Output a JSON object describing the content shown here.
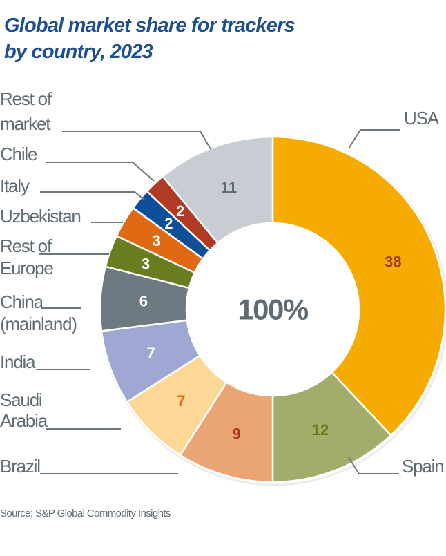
{
  "chart_data": {
    "type": "pie",
    "variant": "donut",
    "title": [
      "Global market share for trackers",
      "by country, 2023"
    ],
    "center_label": "100%",
    "unit": "%",
    "start": "12 o'clock, clockwise",
    "slices": [
      {
        "name": "USA",
        "label": [
          "USA"
        ],
        "value": 38,
        "color": "#f5ab00",
        "text_color": "#a2381e"
      },
      {
        "name": "Spain",
        "label": [
          "Spain"
        ],
        "value": 12,
        "color": "#a3ac6a",
        "text_color": "#6c7a1f"
      },
      {
        "name": "Brazil",
        "label": [
          "Brazil"
        ],
        "value": 9,
        "color": "#eba574",
        "text_color": "#b03020"
      },
      {
        "name": "Saudi Arabia",
        "label": [
          "Saudi",
          "Arabia"
        ],
        "value": 7,
        "color": "#fdd796",
        "text_color": "#e06a14"
      },
      {
        "name": "India",
        "label": [
          "India"
        ],
        "value": 7,
        "color": "#9ea8d2",
        "text_color": "#ffffff"
      },
      {
        "name": "China (mainland)",
        "label": [
          "China",
          "(mainland)"
        ],
        "value": 6,
        "color": "#6d7a82",
        "text_color": "#ffffff"
      },
      {
        "name": "Rest of Europe",
        "label": [
          "Rest of",
          "Europe"
        ],
        "value": 3,
        "color": "#687d1f",
        "text_color": "#ffffff"
      },
      {
        "name": "Uzbekistan",
        "label": [
          "Uzbekistan"
        ],
        "value": 3,
        "color": "#e06a14",
        "text_color": "#ffffff"
      },
      {
        "name": "Italy",
        "label": [
          "Italy"
        ],
        "value": 2,
        "color": "#0e4f9a",
        "text_color": "#ffffff"
      },
      {
        "name": "Chile",
        "label": [
          "Chile"
        ],
        "value": 2,
        "color": "#b03a24",
        "text_color": "#ffffff"
      },
      {
        "name": "Rest of market",
        "label": [
          "Rest of",
          "market"
        ],
        "value": 11,
        "color": "#c8cdd3",
        "text_color": "#5f6b73"
      }
    ],
    "source": "Source: S&P Global Commodity Insights"
  }
}
